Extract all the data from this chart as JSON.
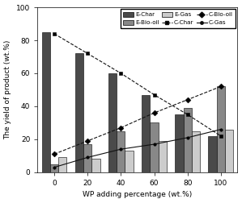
{
  "x_labels": [
    "0",
    "20",
    "40",
    "60",
    "80",
    "100"
  ],
  "x_values": [
    0,
    1,
    2,
    3,
    4,
    5
  ],
  "line_x": [
    0,
    20,
    40,
    60,
    80,
    100
  ],
  "bar_width": 0.25,
  "E_Char": [
    85,
    72,
    60,
    47,
    35,
    22
  ],
  "E_Bio_oil": [
    5,
    17,
    25,
    30,
    39,
    52
  ],
  "E_Gas": [
    9,
    8,
    13,
    19,
    25,
    26
  ],
  "C_Char": [
    84,
    72,
    60,
    47,
    35,
    22
  ],
  "C_Bio_oil": [
    11,
    19,
    27,
    36,
    44,
    52
  ],
  "C_Gas": [
    3,
    9,
    14,
    17,
    21,
    26
  ],
  "bar_color_char": "#4a4a4a",
  "bar_color_biooil": "#888888",
  "bar_color_gas": "#cccccc",
  "line_color": "#111111",
  "xlabel": "WP adding percentage (wt.%)",
  "ylabel": "The yield of product (wt.%)",
  "ylim": [
    0,
    100
  ],
  "yticks": [
    0,
    20,
    40,
    60,
    80,
    100
  ]
}
